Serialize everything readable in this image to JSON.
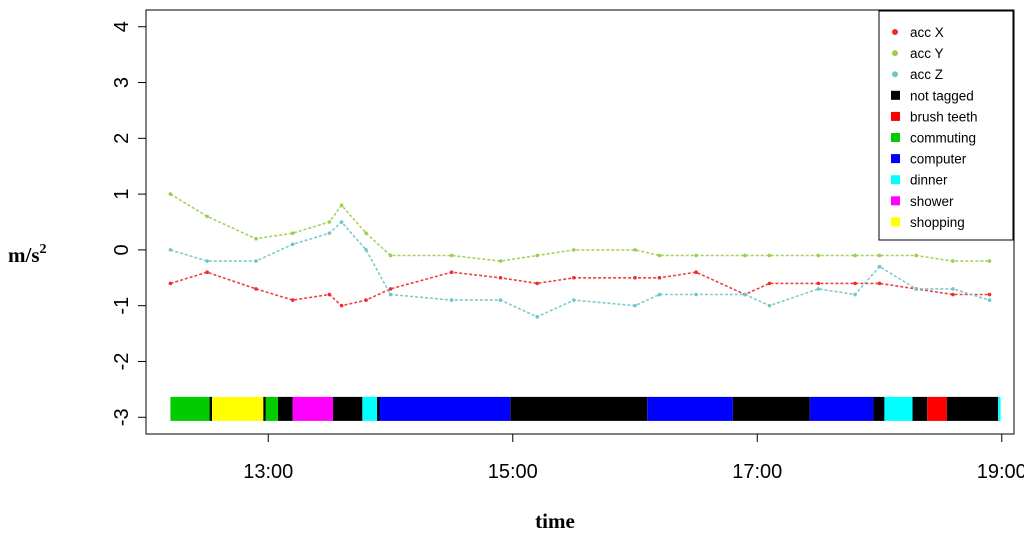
{
  "chart_data": {
    "type": "line",
    "title": "",
    "xlabel": "time",
    "ylabel": "m/s",
    "ylabel_sup": "2",
    "x_unit": "hour",
    "xlim": [
      12.0,
      19.1
    ],
    "ylim": [
      -3.3,
      4.3
    ],
    "x_ticks": [
      {
        "value": 13,
        "label": "13:00"
      },
      {
        "value": 15,
        "label": "15:00"
      },
      {
        "value": 17,
        "label": "17:00"
      },
      {
        "value": 19,
        "label": "19:00"
      }
    ],
    "y_ticks": [
      {
        "value": -3,
        "label": "-3"
      },
      {
        "value": -2,
        "label": "-2"
      },
      {
        "value": -1,
        "label": "-1"
      },
      {
        "value": 0,
        "label": "0"
      },
      {
        "value": 1,
        "label": "1"
      },
      {
        "value": 2,
        "label": "2"
      },
      {
        "value": 3,
        "label": "3"
      },
      {
        "value": 4,
        "label": "4"
      }
    ],
    "grid": false,
    "legend_position": "top-right",
    "series": [
      {
        "name": "acc X",
        "color": "#ee2c2c",
        "x": [
          12.2,
          12.5,
          12.9,
          13.2,
          13.5,
          13.6,
          13.8,
          14.0,
          14.5,
          14.9,
          15.2,
          15.5,
          16.0,
          16.2,
          16.5,
          16.9,
          17.1,
          17.5,
          17.8,
          18.0,
          18.3,
          18.6,
          18.9
        ],
        "values": [
          -0.6,
          -0.4,
          -0.7,
          -0.9,
          -0.8,
          -1.0,
          -0.9,
          -0.7,
          -0.4,
          -0.5,
          -0.6,
          -0.5,
          -0.5,
          -0.5,
          -0.4,
          -0.8,
          -0.6,
          -0.6,
          -0.6,
          -0.6,
          -0.7,
          -0.8,
          -0.8
        ]
      },
      {
        "name": "acc Y",
        "color": "#9acd50",
        "x": [
          12.2,
          12.5,
          12.9,
          13.2,
          13.5,
          13.6,
          13.8,
          14.0,
          14.5,
          14.9,
          15.2,
          15.5,
          16.0,
          16.2,
          16.5,
          16.9,
          17.1,
          17.5,
          17.8,
          18.0,
          18.3,
          18.6,
          18.9
        ],
        "values": [
          1.0,
          0.6,
          0.2,
          0.3,
          0.5,
          0.8,
          0.3,
          -0.1,
          -0.1,
          -0.2,
          -0.1,
          0.0,
          0.0,
          -0.1,
          -0.1,
          -0.1,
          -0.1,
          -0.1,
          -0.1,
          -0.1,
          -0.1,
          -0.2,
          -0.2
        ]
      },
      {
        "name": "acc Z",
        "color": "#6fc6c6",
        "x": [
          12.2,
          12.5,
          12.9,
          13.2,
          13.5,
          13.6,
          13.8,
          14.0,
          14.5,
          14.9,
          15.2,
          15.5,
          16.0,
          16.2,
          16.5,
          16.9,
          17.1,
          17.5,
          17.8,
          18.0,
          18.3,
          18.6,
          18.9
        ],
        "values": [
          0.0,
          -0.2,
          -0.2,
          0.1,
          0.3,
          0.5,
          0.0,
          -0.8,
          -0.9,
          -0.9,
          -1.2,
          -0.9,
          -1.0,
          -0.8,
          -0.8,
          -0.8,
          -1.0,
          -0.7,
          -0.8,
          -0.3,
          -0.7,
          -0.7,
          -0.9
        ]
      }
    ],
    "activity_band": {
      "y": -2.85,
      "legend": [
        {
          "name": "not tagged",
          "color": "#000000"
        },
        {
          "name": "brush teeth",
          "color": "#ff0000"
        },
        {
          "name": "commuting",
          "color": "#00cc00"
        },
        {
          "name": "computer",
          "color": "#0000ff"
        },
        {
          "name": "dinner",
          "color": "#00ffff"
        },
        {
          "name": "shower",
          "color": "#ff00ff"
        },
        {
          "name": "shopping",
          "color": "#ffff00"
        }
      ],
      "segments": [
        {
          "start": 12.2,
          "end": 12.52,
          "activity": "commuting"
        },
        {
          "start": 12.52,
          "end": 12.54,
          "activity": "not tagged"
        },
        {
          "start": 12.54,
          "end": 12.96,
          "activity": "shopping"
        },
        {
          "start": 12.96,
          "end": 12.98,
          "activity": "not tagged"
        },
        {
          "start": 12.98,
          "end": 13.08,
          "activity": "commuting"
        },
        {
          "start": 13.08,
          "end": 13.2,
          "activity": "not tagged"
        },
        {
          "start": 13.2,
          "end": 13.53,
          "activity": "shower"
        },
        {
          "start": 13.53,
          "end": 13.77,
          "activity": "not tagged"
        },
        {
          "start": 13.77,
          "end": 13.89,
          "activity": "dinner"
        },
        {
          "start": 13.89,
          "end": 13.91,
          "activity": "not tagged"
        },
        {
          "start": 13.91,
          "end": 14.98,
          "activity": "computer"
        },
        {
          "start": 14.98,
          "end": 16.1,
          "activity": "not tagged"
        },
        {
          "start": 16.1,
          "end": 16.8,
          "activity": "computer"
        },
        {
          "start": 16.8,
          "end": 17.43,
          "activity": "not tagged"
        },
        {
          "start": 17.43,
          "end": 17.95,
          "activity": "computer"
        },
        {
          "start": 17.95,
          "end": 18.04,
          "activity": "not tagged"
        },
        {
          "start": 18.04,
          "end": 18.27,
          "activity": "dinner"
        },
        {
          "start": 18.27,
          "end": 18.39,
          "activity": "not tagged"
        },
        {
          "start": 18.39,
          "end": 18.55,
          "activity": "brush teeth"
        },
        {
          "start": 18.55,
          "end": 18.97,
          "activity": "not tagged"
        },
        {
          "start": 18.97,
          "end": 18.99,
          "activity": "dinner"
        }
      ]
    }
  }
}
